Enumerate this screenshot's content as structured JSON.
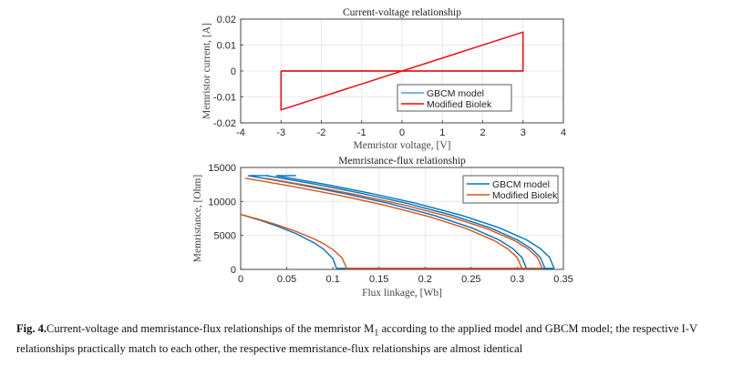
{
  "chart_data": [
    {
      "type": "line",
      "title": "Current-voltage relationship",
      "xlabel": "Memristor voltage, [V]",
      "ylabel": "Memristor current, [A]",
      "xlim": [
        -4,
        4
      ],
      "ylim": [
        -0.02,
        0.02
      ],
      "xticks": [
        -4,
        -3,
        -2,
        -1,
        0,
        1,
        2,
        3,
        4
      ],
      "xtick_labels": [
        "-4",
        "-3",
        "-2",
        "-1",
        "0",
        "1",
        "2",
        "3",
        "4"
      ],
      "yticks": [
        -0.02,
        -0.01,
        0,
        0.01,
        0.02
      ],
      "ytick_labels": [
        "-0.02",
        "-0.01",
        "0",
        "0.01",
        "0.02"
      ],
      "grid": true,
      "legend_position": "lower-right",
      "series": [
        {
          "name": "GBCM model",
          "color": "#4a9fd8",
          "segments": [
            [
              [
                -3,
                0
              ],
              [
                3,
                0
              ],
              [
                3,
                0.015
              ],
              [
                -3,
                -0.015
              ],
              [
                -3,
                0
              ]
            ]
          ]
        },
        {
          "name": "Modified Biolek",
          "color": "#ff0000",
          "segments": [
            [
              [
                -3,
                0
              ],
              [
                3,
                0
              ],
              [
                3,
                0.015
              ],
              [
                -3,
                -0.015
              ],
              [
                -3,
                0
              ]
            ]
          ]
        }
      ]
    },
    {
      "type": "line",
      "title": "Memristance-flux relationship",
      "xlabel": "Flux linkage, [Wb]",
      "ylabel": "Memristance, [Ohm]",
      "xlim": [
        0,
        0.35
      ],
      "ylim": [
        0,
        15000
      ],
      "xticks": [
        0,
        0.05,
        0.1,
        0.15,
        0.2,
        0.25,
        0.3,
        0.35
      ],
      "xtick_labels": [
        "0",
        "0.05",
        "0.1",
        "0.15",
        "0.2",
        "0.25",
        "0.3",
        "0.35"
      ],
      "yticks": [
        0,
        5000,
        10000,
        15000
      ],
      "ytick_labels": [
        "0",
        "5000",
        "10000",
        "15000"
      ],
      "grid": true,
      "legend_position": "top-right",
      "series": [
        {
          "name": "GBCM model",
          "color": "#0072bd",
          "segments": [
            [
              [
                0,
                8100
              ],
              [
                0.02,
                7280
              ],
              [
                0.04,
                6354
              ],
              [
                0.06,
                5269
              ],
              [
                0.08,
                3891
              ],
              [
                0.09,
                2972
              ],
              [
                0.1,
                1589
              ],
              [
                0.104,
                150
              ],
              [
                0.34,
                150
              ]
            ],
            [
              [
                0.008,
                13800
              ],
              [
                0.06,
                12558
              ],
              [
                0.11,
                11233
              ],
              [
                0.16,
                9728
              ],
              [
                0.21,
                7943
              ],
              [
                0.25,
                6152
              ],
              [
                0.28,
                4350
              ],
              [
                0.295,
                3076
              ],
              [
                0.305,
                1776
              ],
              [
                0.31,
                150
              ]
            ],
            [
              [
                0.028,
                13800
              ],
              [
                0.08,
                12558
              ],
              [
                0.13,
                11233
              ],
              [
                0.18,
                9728
              ],
              [
                0.23,
                7943
              ],
              [
                0.27,
                6152
              ],
              [
                0.3,
                4350
              ],
              [
                0.315,
                3076
              ],
              [
                0.325,
                1776
              ],
              [
                0.33,
                150
              ]
            ],
            [
              [
                0.038,
                13800
              ],
              [
                0.09,
                12558
              ],
              [
                0.14,
                11233
              ],
              [
                0.19,
                9728
              ],
              [
                0.24,
                7943
              ],
              [
                0.28,
                6152
              ],
              [
                0.31,
                4350
              ],
              [
                0.325,
                3076
              ],
              [
                0.335,
                1776
              ],
              [
                0.34,
                150
              ]
            ],
            [
              [
                0.01,
                13800
              ],
              [
                0.03,
                13800
              ]
            ],
            [
              [
                0.04,
                13800
              ],
              [
                0.06,
                13800
              ]
            ]
          ]
        },
        {
          "name": "Modified Biolek",
          "color": "#d95319",
          "segments": [
            [
              [
                0,
                8100
              ],
              [
                0.02,
                7362
              ],
              [
                0.04,
                6541
              ],
              [
                0.06,
                5602
              ],
              [
                0.08,
                4469
              ],
              [
                0.09,
                3777
              ],
              [
                0.1,
                2925
              ],
              [
                0.11,
                1689
              ],
              [
                0.115,
                150
              ],
              [
                0.327,
                150
              ]
            ],
            [
              [
                0.005,
                13419
              ],
              [
                0.055,
                12250
              ],
              [
                0.105,
                10957
              ],
              [
                0.155,
                9489
              ],
              [
                0.205,
                7748
              ],
              [
                0.245,
                6001
              ],
              [
                0.275,
                4243
              ],
              [
                0.29,
                3000
              ],
              [
                0.3,
                1732
              ],
              [
                0.305,
                150
              ]
            ],
            [
              [
                0.027,
                13419
              ],
              [
                0.077,
                12250
              ],
              [
                0.127,
                10957
              ],
              [
                0.177,
                9489
              ],
              [
                0.227,
                7748
              ],
              [
                0.267,
                6001
              ],
              [
                0.297,
                4243
              ],
              [
                0.312,
                3000
              ],
              [
                0.322,
                1732
              ],
              [
                0.327,
                150
              ]
            ]
          ]
        }
      ]
    }
  ],
  "caption": {
    "label": "Fig. 4.",
    "text_before_sub": "Current-voltage and memristance-flux relationships of the memristor M",
    "subscript": "1",
    "text_after_sub": " according to the applied model and GBCM model; the respective I-V relationships practically match to each other, the respective memristance-flux relationships are almost identical"
  }
}
